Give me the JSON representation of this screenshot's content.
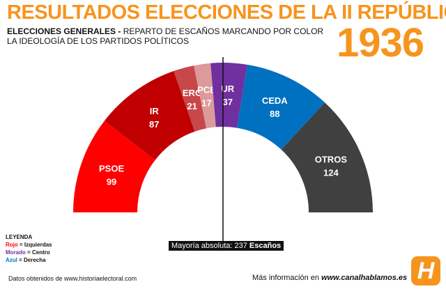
{
  "header": {
    "title": "RESULTADOS ELECCIONES DE LA II REPÚBLICA",
    "subtitle_bold": "ELECCIONES GENERALES -",
    "subtitle_rest": "REPARTO DE ESCAÑOS MARCANDO POR COLOR LA IDEOLOGÍA DE LOS PARTIDOS POLÍTICOS",
    "year": "1936"
  },
  "chart_data": {
    "type": "pie",
    "shape": "half-donut",
    "categories": [
      "PSOE",
      "IR",
      "ERC",
      "PCE",
      "UR",
      "CEDA",
      "OTROS"
    ],
    "values": [
      99,
      87,
      21,
      17,
      37,
      88,
      124
    ],
    "colors": [
      "#ff0000",
      "#c00000",
      "#c8474a",
      "#dd9a9a",
      "#7030a0",
      "#0070c0",
      "#404040"
    ],
    "majority_line": 237,
    "majority_label": "Mayoría absoluta: 237",
    "majority_unit": "Escaños"
  },
  "legend": {
    "title": "LEYENDA",
    "items": [
      {
        "key": "Rojo",
        "value": "= Izquierdas",
        "color": "#ff0000"
      },
      {
        "key": "Morado",
        "value": "= Centro",
        "color": "#7030a0"
      },
      {
        "key": "Azul",
        "value": "= Derecha",
        "color": "#0070c0"
      }
    ]
  },
  "footer": {
    "source": "Datos obtenidos de www.historiaelectoral.com",
    "more_prefix": "Más información en",
    "more_link": "www.canalhablamos.es",
    "logo_letter": "H"
  }
}
